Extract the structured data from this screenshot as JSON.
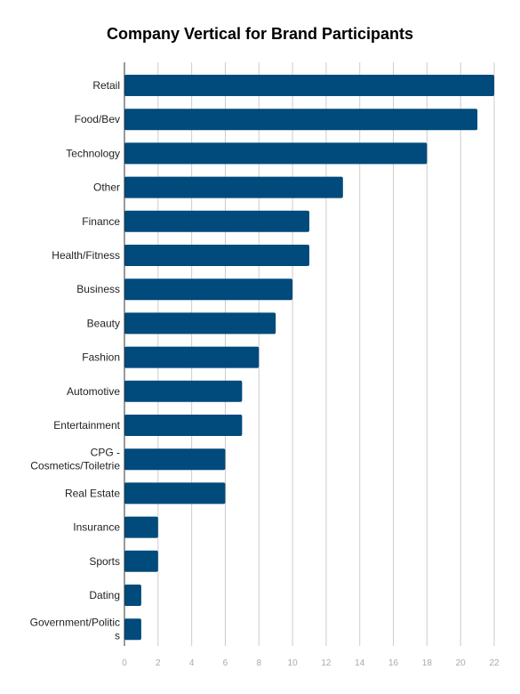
{
  "chart_data": {
    "type": "bar",
    "orientation": "horizontal",
    "title": "Company Vertical for Brand Participants",
    "categories": [
      [
        "Retail"
      ],
      [
        "Food/Bev"
      ],
      [
        "Technology"
      ],
      [
        "Other"
      ],
      [
        "Finance"
      ],
      [
        "Health/Fitness"
      ],
      [
        "Business"
      ],
      [
        "Beauty"
      ],
      [
        "Fashion"
      ],
      [
        "Automotive"
      ],
      [
        "Entertainment"
      ],
      [
        "CPG -",
        "Cosmetics/Toiletrie"
      ],
      [
        "Real Estate"
      ],
      [
        "Insurance"
      ],
      [
        "Sports"
      ],
      [
        "Dating"
      ],
      [
        "Government/Politic",
        "s"
      ]
    ],
    "values": [
      22,
      21,
      18,
      13,
      11,
      11,
      10,
      9,
      8,
      7,
      7,
      6,
      6,
      2,
      2,
      1,
      1
    ],
    "xlim": [
      0,
      22
    ],
    "xticks": [
      0,
      2,
      4,
      6,
      8,
      10,
      12,
      14,
      16,
      18,
      20,
      22
    ],
    "xlabel": "",
    "ylabel": "",
    "grid": true,
    "bar_color": "#004a7c",
    "grid_color": "#cccccc",
    "axis_color": "#333333"
  }
}
